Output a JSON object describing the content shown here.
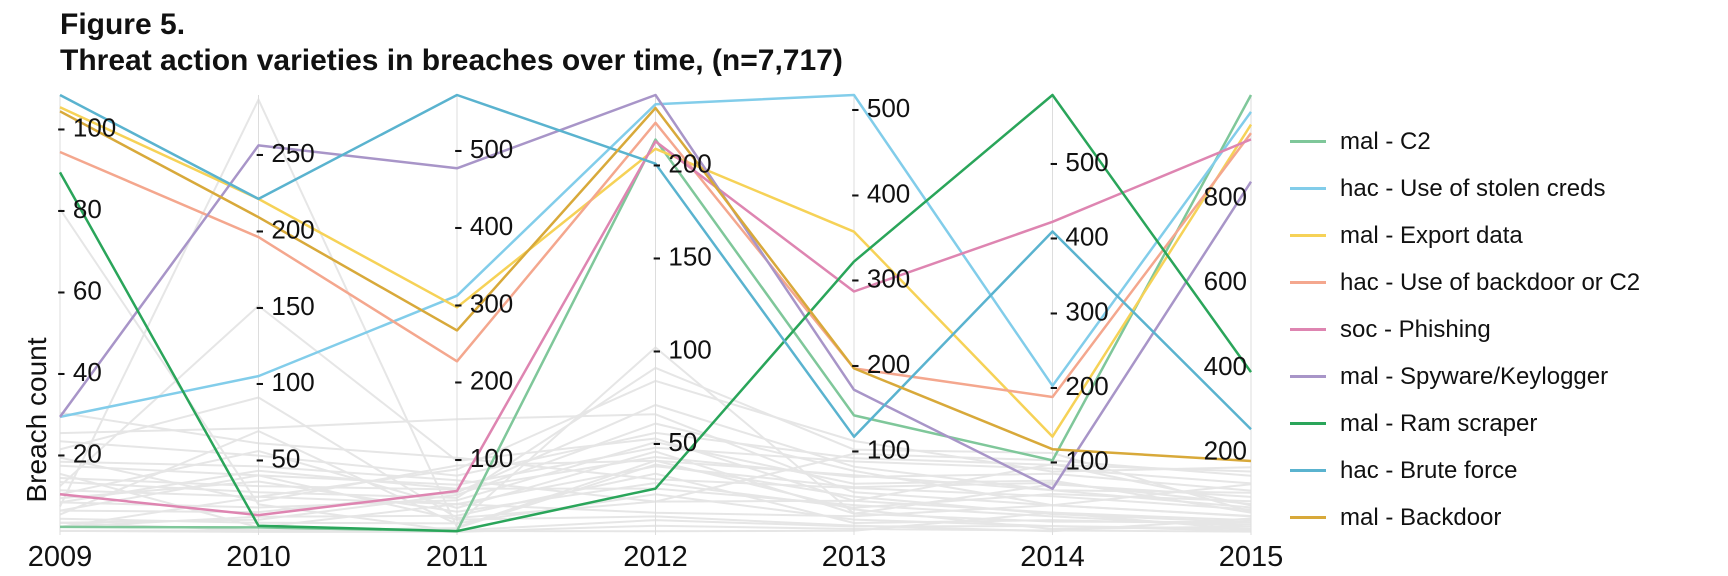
{
  "figure": {
    "label": "Figure 5.",
    "title": "Threat action varieties in breaches over time, (n=7,717)"
  },
  "colors": {
    "background_lines": "#e6e6e6",
    "axis": "#dddddd"
  },
  "chart_data": {
    "type": "line",
    "subtype": "parallel-coordinates",
    "ylabel": "Breach count",
    "xlabel": "",
    "title": "Threat action varieties in breaches over time, (n=7,717)",
    "categories": [
      "2009",
      "2010",
      "2011",
      "2012",
      "2013",
      "2014",
      "2015"
    ],
    "axes": [
      {
        "year": "2009",
        "range": [
          0,
          108
        ],
        "ticks": [
          "20",
          "40",
          "60",
          "80",
          "100"
        ]
      },
      {
        "year": "2010",
        "range": [
          0,
          288
        ],
        "ticks": [
          "50",
          "100",
          "150",
          "200",
          "250"
        ]
      },
      {
        "year": "2011",
        "range": [
          0,
          570
        ],
        "ticks": [
          "100",
          "200",
          "300",
          "400",
          "500"
        ]
      },
      {
        "year": "2012",
        "range": [
          0,
          237
        ],
        "ticks": [
          "50",
          "100",
          "150",
          "200"
        ]
      },
      {
        "year": "2013",
        "range": [
          0,
          515
        ],
        "ticks": [
          "100",
          "200",
          "300",
          "400",
          "500"
        ]
      },
      {
        "year": "2014",
        "range": [
          0,
          590
        ],
        "ticks": [
          "100",
          "200",
          "300",
          "400",
          "500"
        ]
      },
      {
        "year": "2015",
        "range": [
          0,
          1040
        ],
        "ticks": [
          "200",
          "400",
          "600",
          "800"
        ]
      }
    ],
    "series": [
      {
        "name": "mal - C2",
        "color": "#7fc79a",
        "values": [
          2,
          5,
          5,
          213,
          140,
          100,
          1040
        ]
      },
      {
        "name": "hac - Use of stolen creds",
        "color": "#82cdea",
        "values": [
          29,
          104,
          310,
          232,
          515,
          200,
          1000
        ]
      },
      {
        "name": "mal - Export data",
        "color": "#f6d257",
        "values": [
          105,
          220,
          295,
          208,
          355,
          132,
          970
        ]
      },
      {
        "name": "hac - Use of backdoor or C2",
        "color": "#f4a78e",
        "values": [
          94,
          195,
          225,
          222,
          195,
          185,
          950
        ]
      },
      {
        "name": "soc - Phishing",
        "color": "#de85b1",
        "values": [
          10,
          13,
          57,
          212,
          285,
          420,
          935
        ]
      },
      {
        "name": "mal - Spyware/Keylogger",
        "color": "#a895c8",
        "values": [
          29,
          255,
          475,
          237,
          170,
          62,
          835
        ]
      },
      {
        "name": "mal - Ram scraper",
        "color": "#2aa55a",
        "values": [
          89,
          6,
          5,
          25,
          320,
          590,
          385
        ]
      },
      {
        "name": "hac - Brute force",
        "color": "#5ab3cf",
        "values": [
          108,
          220,
          570,
          200,
          115,
          407,
          250
        ]
      },
      {
        "name": "mal - Backdoor",
        "color": "#d8a93a",
        "values": [
          104,
          208,
          265,
          230,
          195,
          115,
          175
        ]
      }
    ],
    "background_series": [
      [
        1,
        3,
        9,
        38,
        45,
        28,
        30
      ],
      [
        3,
        10,
        52,
        60,
        75,
        40,
        44
      ],
      [
        6,
        39,
        20,
        10,
        11,
        5,
        39
      ],
      [
        8,
        18,
        45,
        50,
        60,
        73,
        53
      ],
      [
        11,
        25,
        40,
        37,
        56,
        70,
        73
      ],
      [
        14,
        32,
        59,
        42,
        68,
        82,
        105
      ],
      [
        17,
        39,
        65,
        47,
        86,
        89,
        122
      ],
      [
        18,
        45,
        71,
        18,
        95,
        100,
        140
      ],
      [
        23,
        52,
        77,
        55,
        90,
        94,
        150
      ],
      [
        2,
        25,
        85,
        83,
        110,
        85,
        160
      ],
      [
        5,
        68,
        14,
        101,
        25,
        68,
        90
      ],
      [
        12,
        150,
        96,
        52,
        40,
        95,
        70
      ],
      [
        25,
        70,
        150,
        65,
        50,
        40,
        120
      ],
      [
        7,
        285,
        10,
        40,
        30,
        8,
        20
      ],
      [
        80,
        20,
        5,
        2,
        5,
        30,
        12
      ],
      [
        4,
        8,
        15,
        22,
        18,
        12,
        10
      ],
      [
        9,
        35,
        30,
        28,
        32,
        55,
        80
      ],
      [
        30,
        60,
        100,
        30,
        55,
        52,
        60
      ],
      [
        2,
        12,
        25,
        33,
        14,
        20,
        25
      ],
      [
        15,
        5,
        40,
        12,
        22,
        40,
        45
      ],
      [
        21,
        90,
        22,
        18,
        40,
        30,
        35
      ],
      [
        3,
        3,
        6,
        8,
        10,
        12,
        15
      ],
      [
        6,
        15,
        55,
        70,
        80,
        60,
        65
      ],
      [
        10,
        55,
        35,
        45,
        25,
        18,
        30
      ],
      [
        1,
        2,
        4,
        5,
        7,
        6,
        8
      ],
      [
        13,
        28,
        48,
        90,
        100,
        110,
        55
      ],
      [
        8,
        42,
        60,
        25,
        35,
        25,
        20
      ],
      [
        19,
        22,
        90,
        40,
        70,
        60,
        100
      ]
    ]
  }
}
